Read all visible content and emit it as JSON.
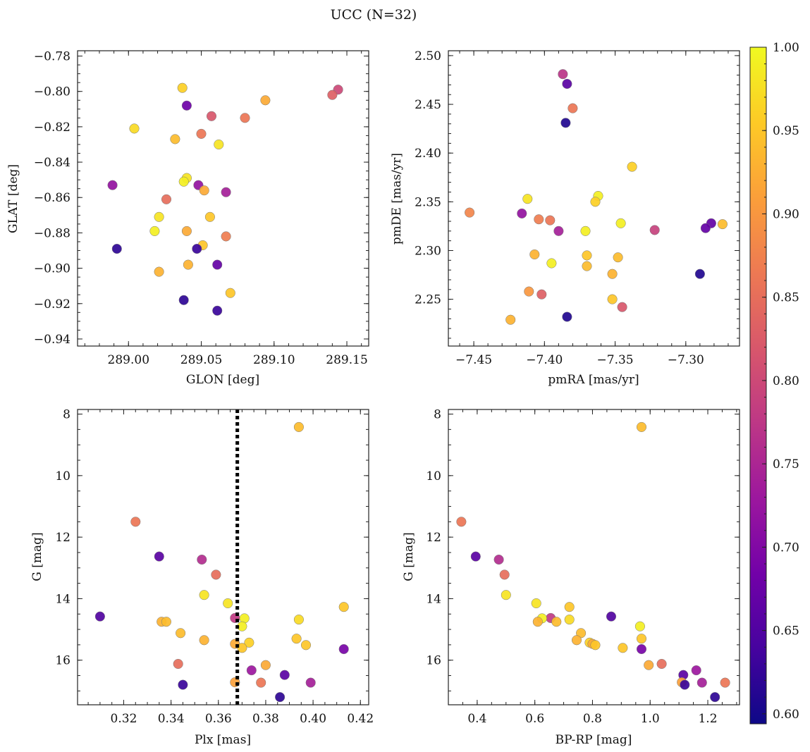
{
  "figure": {
    "title": "UCC (N=32)",
    "colormap": [
      "#0d0887",
      "#46039f",
      "#7201a8",
      "#9c179e",
      "#bd3786",
      "#d8576b",
      "#ed7953",
      "#fb9f3a",
      "#fdca26",
      "#f0f921"
    ],
    "colorbar": {
      "min": 0.594,
      "max": 1.0,
      "ticks": [
        0.6,
        0.65,
        0.7,
        0.75,
        0.8,
        0.85,
        0.9,
        0.95,
        1.0
      ],
      "tick_labels": [
        "0.60",
        "0.65",
        "0.70",
        "0.75",
        "0.80",
        "0.85",
        "0.90",
        "0.95",
        "1.00"
      ]
    }
  },
  "chart_data": [
    {
      "type": "scatter",
      "id": "glon-glat",
      "xlabel": "GLON [deg]",
      "ylabel": "GLAT [deg]",
      "xlim": [
        288.965,
        289.165
      ],
      "ylim": [
        -0.944,
        -0.777
      ],
      "y_inverted": false,
      "xticks": [
        289.0,
        289.05,
        289.1,
        289.15
      ],
      "xtick_labels": [
        "289.00",
        "289.05",
        "289.10",
        "289.15"
      ],
      "yticks": [
        -0.94,
        -0.92,
        -0.9,
        -0.88,
        -0.86,
        -0.84,
        -0.82,
        -0.8,
        -0.78
      ],
      "ytick_labels": [
        "−0.94",
        "−0.92",
        "−0.90",
        "−0.88",
        "−0.86",
        "−0.84",
        "−0.82",
        "−0.80",
        "−0.78"
      ],
      "points": [
        [
          289.144,
          -0.799,
          0.8
        ],
        [
          289.14,
          -0.802,
          0.83
        ],
        [
          289.094,
          -0.805,
          0.92
        ],
        [
          289.037,
          -0.798,
          0.96
        ],
        [
          289.04,
          -0.808,
          0.68
        ],
        [
          289.057,
          -0.814,
          0.82
        ],
        [
          289.08,
          -0.815,
          0.86
        ],
        [
          289.004,
          -0.821,
          0.97
        ],
        [
          289.05,
          -0.824,
          0.86
        ],
        [
          289.032,
          -0.827,
          0.94
        ],
        [
          289.062,
          -0.83,
          0.98
        ],
        [
          289.04,
          -0.849,
          0.98
        ],
        [
          289.038,
          -0.851,
          0.99
        ],
        [
          288.989,
          -0.853,
          0.72
        ],
        [
          289.048,
          -0.853,
          0.72
        ],
        [
          289.052,
          -0.856,
          0.92
        ],
        [
          289.067,
          -0.857,
          0.74
        ],
        [
          289.026,
          -0.861,
          0.85
        ],
        [
          289.021,
          -0.871,
          0.98
        ],
        [
          289.056,
          -0.871,
          0.95
        ],
        [
          289.018,
          -0.879,
          0.99
        ],
        [
          289.04,
          -0.879,
          0.92
        ],
        [
          289.067,
          -0.882,
          0.87
        ],
        [
          289.051,
          -0.887,
          0.95
        ],
        [
          288.992,
          -0.889,
          0.62
        ],
        [
          289.047,
          -0.889,
          0.63
        ],
        [
          289.041,
          -0.898,
          0.93
        ],
        [
          289.061,
          -0.898,
          0.67
        ],
        [
          289.021,
          -0.902,
          0.93
        ],
        [
          289.07,
          -0.914,
          0.95
        ],
        [
          289.038,
          -0.918,
          0.62
        ],
        [
          289.061,
          -0.924,
          0.63
        ]
      ]
    },
    {
      "type": "scatter",
      "id": "pmra-pmde",
      "xlabel": "pmRA [mas/yr]",
      "ylabel": "pmDE [mas/yr]",
      "xlim": [
        -7.468,
        -7.262
      ],
      "ylim": [
        2.202,
        2.505
      ],
      "y_inverted": false,
      "xticks": [
        -7.45,
        -7.4,
        -7.35,
        -7.3
      ],
      "xtick_labels": [
        "−7.45",
        "−7.40",
        "−7.35",
        "−7.30"
      ],
      "yticks": [
        2.25,
        2.3,
        2.35,
        2.4,
        2.45,
        2.5
      ],
      "ytick_labels": [
        "2.25",
        "2.30",
        "2.35",
        "2.40",
        "2.45",
        "2.50"
      ],
      "points": [
        [
          -7.387,
          2.481,
          0.77
        ],
        [
          -7.384,
          2.471,
          0.66
        ],
        [
          -7.38,
          2.446,
          0.86
        ],
        [
          -7.385,
          2.431,
          0.61
        ],
        [
          -7.338,
          2.386,
          0.96
        ],
        [
          -7.362,
          2.356,
          0.99
        ],
        [
          -7.364,
          2.35,
          0.96
        ],
        [
          -7.412,
          2.353,
          0.98
        ],
        [
          -7.453,
          2.339,
          0.88
        ],
        [
          -7.416,
          2.338,
          0.72
        ],
        [
          -7.404,
          2.332,
          0.87
        ],
        [
          -7.396,
          2.331,
          0.86
        ],
        [
          -7.346,
          2.328,
          0.99
        ],
        [
          -7.274,
          2.327,
          0.94
        ],
        [
          -7.282,
          2.328,
          0.67
        ],
        [
          -7.286,
          2.323,
          0.67
        ],
        [
          -7.322,
          2.321,
          0.79
        ],
        [
          -7.39,
          2.32,
          0.74
        ],
        [
          -7.371,
          2.32,
          0.99
        ],
        [
          -7.407,
          2.296,
          0.93
        ],
        [
          -7.37,
          2.295,
          0.95
        ],
        [
          -7.348,
          2.293,
          0.94
        ],
        [
          -7.395,
          2.287,
          0.99
        ],
        [
          -7.37,
          2.284,
          0.94
        ],
        [
          -7.352,
          2.276,
          0.93
        ],
        [
          -7.29,
          2.276,
          0.61
        ],
        [
          -7.411,
          2.258,
          0.9
        ],
        [
          -7.402,
          2.255,
          0.83
        ],
        [
          -7.352,
          2.25,
          0.95
        ],
        [
          -7.345,
          2.242,
          0.82
        ],
        [
          -7.384,
          2.232,
          0.61
        ],
        [
          -7.424,
          2.229,
          0.93
        ]
      ]
    },
    {
      "type": "scatter",
      "id": "plx-g",
      "xlabel": "Plx [mas]",
      "ylabel": "G [mag]",
      "xlim": [
        0.3005,
        0.4235
      ],
      "ylim": [
        7.85,
        17.45
      ],
      "y_inverted": true,
      "vline": {
        "x": 0.368,
        "style": "dotted"
      },
      "xticks": [
        0.32,
        0.34,
        0.36,
        0.38,
        0.4,
        0.42
      ],
      "xtick_labels": [
        "0.32",
        "0.34",
        "0.36",
        "0.38",
        "0.40",
        "0.42"
      ],
      "yticks": [
        8,
        10,
        12,
        14,
        16
      ],
      "ytick_labels": [
        "8",
        "10",
        "12",
        "14",
        "16"
      ],
      "points": [
        [
          0.394,
          8.42,
          0.94
        ],
        [
          0.325,
          11.5,
          0.86
        ],
        [
          0.335,
          12.63,
          0.66
        ],
        [
          0.353,
          12.73,
          0.76
        ],
        [
          0.359,
          13.22,
          0.85
        ],
        [
          0.354,
          13.88,
          0.98
        ],
        [
          0.364,
          14.15,
          0.98
        ],
        [
          0.413,
          14.27,
          0.95
        ],
        [
          0.31,
          14.58,
          0.65
        ],
        [
          0.367,
          14.63,
          0.78
        ],
        [
          0.371,
          14.64,
          0.99
        ],
        [
          0.394,
          14.68,
          0.97
        ],
        [
          0.336,
          14.75,
          0.93
        ],
        [
          0.338,
          14.75,
          0.94
        ],
        [
          0.37,
          14.9,
          0.99
        ],
        [
          0.344,
          15.12,
          0.94
        ],
        [
          0.393,
          15.3,
          0.95
        ],
        [
          0.354,
          15.35,
          0.93
        ],
        [
          0.373,
          15.43,
          0.96
        ],
        [
          0.367,
          15.47,
          0.92
        ],
        [
          0.397,
          15.51,
          0.95
        ],
        [
          0.37,
          15.6,
          0.95
        ],
        [
          0.413,
          15.64,
          0.69
        ],
        [
          0.343,
          16.12,
          0.85
        ],
        [
          0.38,
          16.16,
          0.92
        ],
        [
          0.374,
          16.33,
          0.73
        ],
        [
          0.388,
          16.48,
          0.66
        ],
        [
          0.367,
          16.72,
          0.91
        ],
        [
          0.378,
          16.73,
          0.86
        ],
        [
          0.399,
          16.73,
          0.74
        ],
        [
          0.345,
          16.8,
          0.63
        ],
        [
          0.386,
          17.2,
          0.62
        ]
      ]
    },
    {
      "type": "scatter",
      "id": "bprp-g",
      "xlabel": "BP-RP [mag]",
      "ylabel": "G [mag]",
      "xlim": [
        0.3,
        1.31
      ],
      "ylim": [
        7.85,
        17.45
      ],
      "y_inverted": true,
      "xticks": [
        0.4,
        0.6,
        0.8,
        1.0,
        1.2
      ],
      "xtick_labels": [
        "0.4",
        "0.6",
        "0.8",
        "1.0",
        "1.2"
      ],
      "yticks": [
        8,
        10,
        12,
        14,
        16
      ],
      "ytick_labels": [
        "8",
        "10",
        "12",
        "14",
        "16"
      ],
      "points": [
        [
          0.97,
          8.42,
          0.94
        ],
        [
          0.345,
          11.5,
          0.86
        ],
        [
          0.395,
          12.63,
          0.66
        ],
        [
          0.475,
          12.73,
          0.76
        ],
        [
          0.495,
          13.22,
          0.85
        ],
        [
          0.5,
          13.88,
          0.98
        ],
        [
          0.605,
          14.15,
          0.98
        ],
        [
          0.72,
          14.27,
          0.95
        ],
        [
          0.865,
          14.58,
          0.65
        ],
        [
          0.655,
          14.63,
          0.78
        ],
        [
          0.625,
          14.64,
          0.99
        ],
        [
          0.72,
          14.68,
          0.97
        ],
        [
          0.61,
          14.75,
          0.93
        ],
        [
          0.675,
          14.75,
          0.94
        ],
        [
          0.965,
          14.9,
          0.99
        ],
        [
          0.76,
          15.12,
          0.94
        ],
        [
          0.97,
          15.3,
          0.95
        ],
        [
          0.745,
          15.35,
          0.93
        ],
        [
          0.79,
          15.43,
          0.96
        ],
        [
          0.8,
          15.47,
          0.92
        ],
        [
          0.81,
          15.51,
          0.95
        ],
        [
          0.905,
          15.6,
          0.95
        ],
        [
          0.97,
          15.64,
          0.69
        ],
        [
          1.04,
          16.12,
          0.85
        ],
        [
          0.995,
          16.16,
          0.92
        ],
        [
          1.16,
          16.33,
          0.73
        ],
        [
          1.115,
          16.48,
          0.66
        ],
        [
          1.11,
          16.72,
          0.91
        ],
        [
          1.26,
          16.73,
          0.86
        ],
        [
          1.18,
          16.73,
          0.74
        ],
        [
          1.12,
          16.8,
          0.63
        ],
        [
          1.225,
          17.2,
          0.62
        ]
      ]
    }
  ]
}
